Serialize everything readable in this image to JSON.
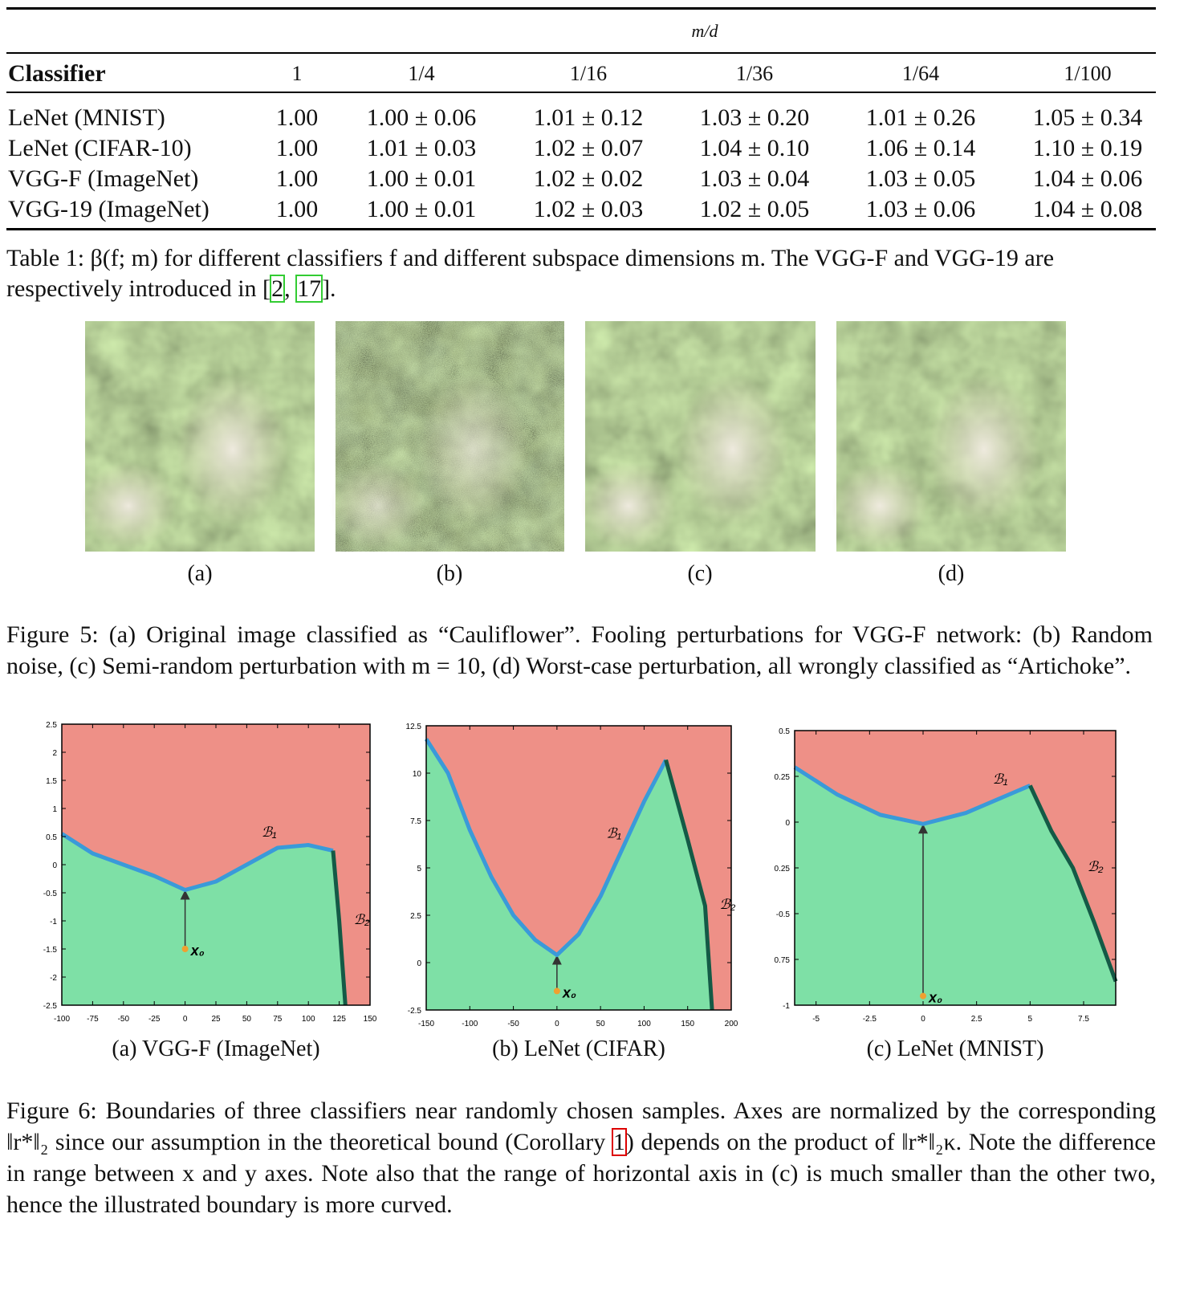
{
  "table": {
    "group_label": "m/d",
    "columns": [
      "Classifier",
      "1",
      "1/4",
      "1/16",
      "1/36",
      "1/64",
      "1/100"
    ],
    "rows": [
      [
        "LeNet (MNIST)",
        "1.00",
        "1.00 ± 0.06",
        "1.01 ± 0.12",
        "1.03 ± 0.20",
        "1.01 ± 0.26",
        "1.05 ± 0.34"
      ],
      [
        "LeNet (CIFAR-10)",
        "1.00",
        "1.01 ± 0.03",
        "1.02 ± 0.07",
        "1.04 ± 0.10",
        "1.06 ± 0.14",
        "1.10 ± 0.19"
      ],
      [
        "VGG-F (ImageNet)",
        "1.00",
        "1.00 ± 0.01",
        "1.02 ± 0.02",
        "1.03 ± 0.04",
        "1.03 ± 0.05",
        "1.04 ± 0.06"
      ],
      [
        "VGG-19 (ImageNet)",
        "1.00",
        "1.00 ± 0.01",
        "1.02 ± 0.03",
        "1.02 ± 0.05",
        "1.03 ± 0.06",
        "1.04 ± 0.08"
      ]
    ],
    "caption": [
      "Table 1:  β(f; m) for different classifiers f and different subspace dimensions m. The VGG-F and VGG-19 are respectively introduced in [",
      "2",
      ", ",
      "17",
      "]."
    ]
  },
  "figure5": {
    "panels": [
      "(a)",
      "(b)",
      "(c)",
      "(d)"
    ],
    "caption": "Figure 5:  (a) Original image classified as “Cauliflower”. Fooling perturbations for VGG-F network: (b) Random noise, (c) Semi-random perturbation with m = 10, (d) Worst-case perturbation, all wrongly classified as “Artichoke”."
  },
  "figure6": {
    "plots": [
      {
        "subcaption": "(a)  VGG-F (ImageNet)",
        "xlim": [
          -100,
          150
        ],
        "ylim": [
          -2.5,
          2.5
        ],
        "xticks": [
          -100,
          -75,
          -50,
          -25,
          0,
          25,
          50,
          75,
          100,
          125,
          150
        ],
        "yticks": [
          -2.5,
          -2,
          -1.5,
          -1,
          -0.5,
          0,
          0.5,
          1,
          1.5,
          2,
          2.5
        ],
        "point": {
          "label": "x₀",
          "x": 0,
          "y": -1.5
        },
        "boundaries": [
          {
            "name": "ℬ₁",
            "x": [
              -100,
              -75,
              -50,
              -25,
              0,
              25,
              50,
              75,
              100,
              120
            ],
            "y": [
              0.55,
              0.2,
              0.0,
              -0.2,
              -0.45,
              -0.3,
              0.0,
              0.3,
              0.35,
              0.25
            ]
          },
          {
            "name": "ℬ₂",
            "x": [
              120,
              125,
              130
            ],
            "y": [
              0.25,
              -1,
              -2.5
            ]
          }
        ]
      },
      {
        "subcaption": "(b)  LeNet (CIFAR)",
        "xlim": [
          -150,
          200
        ],
        "ylim": [
          -2.5,
          12.5
        ],
        "xticks": [
          -150,
          -100,
          -50,
          0,
          50,
          100,
          150,
          200
        ],
        "yticks": [
          -2.5,
          0,
          2.5,
          5,
          7.5,
          10,
          12.5
        ],
        "point": {
          "label": "x₀",
          "x": 0,
          "y": -1.5
        },
        "boundaries": [
          {
            "name": "ℬ₁",
            "x": [
              -150,
              -125,
              -100,
              -75,
              -50,
              -25,
              0,
              25,
              50,
              75,
              100,
              125
            ],
            "y": [
              11.8,
              10,
              7,
              4.5,
              2.5,
              1.2,
              0.4,
              1.5,
              3.5,
              6,
              8.5,
              10.7
            ]
          },
          {
            "name": "ℬ₂",
            "x": [
              125,
              150,
              170,
              178
            ],
            "y": [
              10.7,
              6.5,
              3,
              -2.5
            ]
          }
        ]
      },
      {
        "subcaption": "(c)  LeNet (MNIST)",
        "xlim": [
          -6,
          9
        ],
        "ylim": [
          -1,
          0.5
        ],
        "xticks": [
          -5,
          -2.5,
          0,
          2.5,
          5,
          7.5
        ],
        "yticks": [
          {
            "value": -1,
            "label": "-1"
          },
          {
            "value": -0.75,
            "label": "0.75"
          },
          -0.5,
          {
            "value": -0.25,
            "label": "0.25"
          },
          0,
          0.25,
          0.5
        ],
        "point": {
          "label": "x₀",
          "x": 0,
          "y": -0.95
        },
        "boundaries": [
          {
            "name": "ℬ₁",
            "x": [
              -6,
              -4,
              -2,
              0,
              2,
              4,
              5
            ],
            "y": [
              0.3,
              0.15,
              0.04,
              -0.01,
              0.05,
              0.15,
              0.2
            ]
          },
          {
            "name": "ℬ₂",
            "x": [
              5,
              6,
              6.5,
              7,
              8,
              9
            ],
            "y": [
              0.2,
              -0.05,
              -0.15,
              -0.25,
              -0.55,
              -0.87
            ]
          }
        ]
      }
    ],
    "caption": [
      "Figure 6: Boundaries of three classifiers near randomly chosen samples. Axes are normalized by the corresponding ‖r*‖₂ since our assumption in the theoretical bound (Corollary ",
      "1",
      ") depends on the product of ‖r*‖₂κ. Note the difference in range between x and y axes. Note also that the range of horizontal axis in (c) is much smaller than the other two, hence the illustrated boundary is more curved."
    ]
  }
}
